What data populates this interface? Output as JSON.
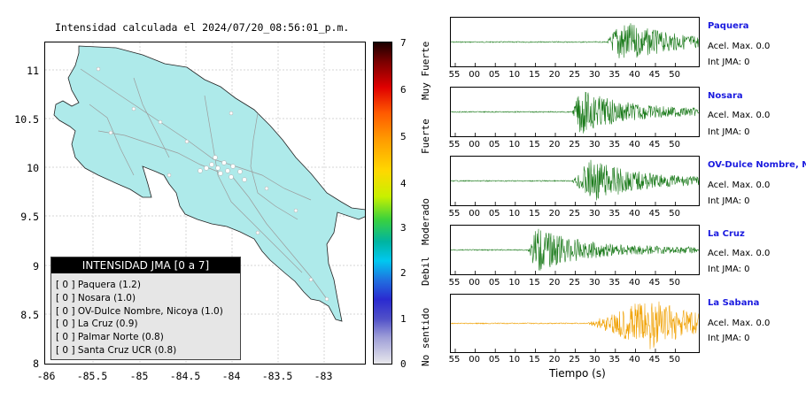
{
  "map": {
    "title": "Intensidad calculada el 2024/07/20_08:56:01_p.m.",
    "lat_ticks": [
      "11",
      "10.5",
      "10",
      "9.5",
      "9",
      "8.5",
      "8"
    ],
    "lon_ticks": [
      "-86",
      "-85.5",
      "-85",
      "-84.5",
      "-84",
      "-83.5",
      "-83"
    ],
    "land_color": "#aeeaea",
    "legend": {
      "title": "INTENSIDAD JMA [0 a 7]",
      "items": [
        {
          "value": "[ 0 ]",
          "label": "Paquera (1.2)"
        },
        {
          "value": "[ 0 ]",
          "label": "Nosara (1.0)"
        },
        {
          "value": "[ 0 ]",
          "label": "OV-Dulce Nombre, Nicoya (1.0)"
        },
        {
          "value": "[ 0 ]",
          "label": "La Cruz (0.9)"
        },
        {
          "value": "[ 0 ]",
          "label": "Palmar Norte (0.8)"
        },
        {
          "value": "[ 0 ]",
          "label": "Santa Cruz UCR (0.8)"
        }
      ]
    }
  },
  "colorbar": {
    "numbers": [
      "7",
      "6",
      "5",
      "4",
      "3",
      "2",
      "1",
      "0"
    ],
    "classes": [
      "Muy Fuerte",
      "Fuerte",
      "Moderado",
      "Debil",
      "No sentido"
    ]
  },
  "waveforms": {
    "time_ticks": [
      "55",
      "00",
      "05",
      "10",
      "15",
      "20",
      "25",
      "30",
      "35",
      "40",
      "45",
      "50"
    ],
    "xlabel": "Tiempo (s)",
    "stations": [
      {
        "name": "Paquera",
        "accel": "Acel. Max. 0.0",
        "jma": "Int JMA: 0",
        "color": "#1a7a1a",
        "onset": 0.63,
        "peak": 0.68
      },
      {
        "name": "Nosara",
        "accel": "Acel. Max. 0.0",
        "jma": "Int JMA: 0",
        "color": "#1a7a1a",
        "onset": 0.49,
        "peak": 0.52
      },
      {
        "name": "OV-Dulce Nombre, Nicoya",
        "accel": "Acel. Max. 0.0",
        "jma": "Int JMA: 0",
        "color": "#1a7a1a",
        "onset": 0.49,
        "peak": 0.56
      },
      {
        "name": "La Cruz",
        "accel": "Acel. Max. 0.0",
        "jma": "Int JMA: 0",
        "color": "#1a7a1a",
        "onset": 0.31,
        "peak": 0.34
      },
      {
        "name": "La Sabana",
        "accel": "Acel. Max. 0.0",
        "jma": "Int JMA: 0",
        "color": "#f0a000",
        "onset": 0.55,
        "peak": 0.8
      }
    ]
  }
}
